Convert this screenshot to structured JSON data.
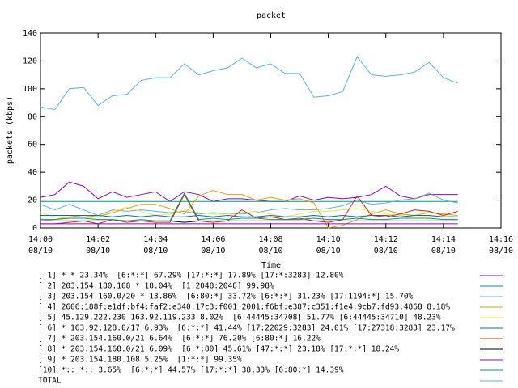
{
  "chart_data": {
    "type": "line",
    "title": "packet",
    "x_label": "Time",
    "y_label": "packets (kbps)",
    "x": [
      0,
      0.5,
      1,
      1.5,
      2,
      2.5,
      3,
      3.5,
      4,
      4.5,
      5,
      5.5,
      6,
      6.5,
      7,
      7.5,
      8,
      8.5,
      9,
      9.5,
      10,
      10.5,
      11,
      11.5,
      12,
      12.5,
      13,
      13.5,
      14,
      14.5
    ],
    "xlim": [
      0,
      16
    ],
    "xticks": [
      {
        "value": 0,
        "label": "14:00",
        "sublabel": "08/10"
      },
      {
        "value": 2,
        "label": "14:02",
        "sublabel": "08/10"
      },
      {
        "value": 4,
        "label": "14:04",
        "sublabel": "08/10"
      },
      {
        "value": 6,
        "label": "14:06",
        "sublabel": "08/10"
      },
      {
        "value": 8,
        "label": "14:08",
        "sublabel": "08/10"
      },
      {
        "value": 10,
        "label": "14:10",
        "sublabel": "08/10"
      },
      {
        "value": 12,
        "label": "14:12",
        "sublabel": "08/10"
      },
      {
        "value": 14,
        "label": "14:14",
        "sublabel": "08/10"
      },
      {
        "value": 16,
        "label": "14:16",
        "sublabel": "08/10"
      }
    ],
    "ylim": [
      0,
      140
    ],
    "yticks": [
      0,
      20,
      40,
      60,
      80,
      100,
      120,
      140
    ],
    "series": [
      {
        "name": "[ 1] * * 23.34%  [6:*:*] 67.29% [17:*:*] 17.89% [17:*:3283] 12.80%",
        "color": "#9400d3",
        "values": [
          22,
          24,
          33,
          30,
          21,
          26,
          22,
          24,
          26,
          19,
          26,
          24,
          19,
          21,
          21,
          20,
          19,
          19,
          23,
          20,
          22,
          21,
          22,
          24,
          30,
          23,
          21,
          24,
          24,
          24
        ]
      },
      {
        "name": "[ 2] 203.154.180.108 * 18.04%  [1:2048:2048] 99.98%",
        "color": "#009e73",
        "values": [
          19,
          19,
          19,
          19,
          19,
          19,
          19,
          19,
          19,
          19,
          19,
          19,
          19,
          19,
          19,
          19,
          19,
          19,
          19,
          19,
          19,
          19,
          19,
          19,
          19,
          19,
          19,
          19,
          19,
          19
        ]
      },
      {
        "name": "[ 3] 203.154.160.0/20 * 13.86%  [6:80:*] 33.72% [6:*:*] 31.23% [17:1194:*] 15.70%",
        "color": "#56b4e9",
        "values": [
          17,
          13,
          17,
          13,
          9,
          13,
          12,
          13,
          12,
          11,
          12,
          10,
          11,
          10,
          10,
          11,
          13,
          14,
          13,
          13,
          14,
          16,
          20,
          17,
          18,
          20,
          21,
          25,
          20,
          18
        ]
      },
      {
        "name": "[ 4] 2606:188f:e1df:bf4:faf2:e340:17c3:f001 2001:f6bf:e387:c351:f1e4:9cb7:fd93:4868 8.18%",
        "color": "#e69f00",
        "values": [
          5,
          6,
          8,
          9,
          8,
          11,
          14,
          17,
          17,
          14,
          10,
          23,
          27,
          24,
          24,
          20,
          22,
          20,
          21,
          18,
          0,
          2,
          6,
          10,
          13,
          10,
          9,
          11,
          10,
          9
        ]
      },
      {
        "name": "[ 5] 45.129.222.230 163.92.119.233 8.02%  [6:44445:34708] 51.77% [6:44445:34710] 48.23%",
        "color": "#f0e442",
        "values": [
          11,
          8,
          7,
          7,
          8,
          12,
          15,
          12,
          9,
          10,
          13,
          11,
          10,
          10,
          11,
          12,
          10,
          8,
          10,
          12,
          12,
          13,
          14,
          12,
          10,
          9,
          8,
          8,
          9,
          8
        ]
      },
      {
        "name": "[ 6] * 163.92.128.0/17 6.93%  [6:*:*] 41.44% [17:22029:3283] 24.01% [17:27318:3283] 23.17%",
        "color": "#0072b2",
        "values": [
          9,
          9,
          9,
          9,
          9,
          8,
          9,
          8,
          9,
          8,
          8,
          9,
          8,
          9,
          8,
          8,
          9,
          8,
          8,
          9,
          8,
          9,
          8,
          9,
          9,
          8,
          9,
          9,
          8,
          8
        ]
      },
      {
        "name": "[ 7] * 203.154.160.0/21 6.64%  [6:*:*] 76.20% [6:80:*] 16.22%",
        "color": "#e51e10",
        "values": [
          3,
          3,
          4,
          5,
          3,
          6,
          4,
          5,
          4,
          4,
          24,
          5,
          4,
          5,
          13,
          7,
          8,
          6,
          7,
          5,
          4,
          6,
          23,
          9,
          8,
          10,
          13,
          12,
          9,
          12
        ]
      },
      {
        "name": "[ 8] * 203.154.168.0/21 6.09%  [6:*:80] 45.61% [47:*:*] 23.18% [17:*:*] 18.24%",
        "color": "#000000",
        "values": [
          5,
          5,
          5,
          5,
          5,
          5,
          5,
          5,
          5,
          5,
          4,
          5,
          5,
          5,
          5,
          5,
          5,
          5,
          5,
          5,
          5,
          5,
          5,
          5,
          5,
          5,
          5,
          5,
          5,
          5
        ]
      },
      {
        "name": "[ 9] * 203.154.180.108 5.25%  [1:*:*] 99.35%",
        "color": "#9400d3",
        "values": [
          3,
          3,
          3,
          3,
          3,
          3,
          3,
          3,
          3,
          3,
          3,
          3,
          3,
          3,
          3,
          3,
          3,
          3,
          3,
          3,
          3,
          3,
          3,
          3,
          3,
          3,
          3,
          3,
          3,
          3
        ]
      },
      {
        "name": "[10] *:: *:: 3.65%  [6:*:*] 44.57% [17:*:*] 38.33% [6:80:*] 14.39%",
        "color": "#009e73",
        "values": [
          6,
          6,
          7,
          7,
          6,
          6,
          5,
          6,
          5,
          5,
          25,
          6,
          7,
          6,
          7,
          7,
          6,
          6,
          6,
          7,
          6,
          6,
          7,
          6,
          6,
          7,
          7,
          7,
          6,
          6
        ]
      },
      {
        "name": "TOTAL",
        "color": "#56b4e9",
        "values": [
          87,
          85,
          100,
          101,
          88,
          95,
          96,
          106,
          108,
          108,
          118,
          110,
          113,
          115,
          122,
          115,
          118,
          111,
          111,
          94,
          95,
          98,
          123,
          110,
          109,
          110,
          112,
          119,
          108,
          104
        ]
      }
    ]
  }
}
